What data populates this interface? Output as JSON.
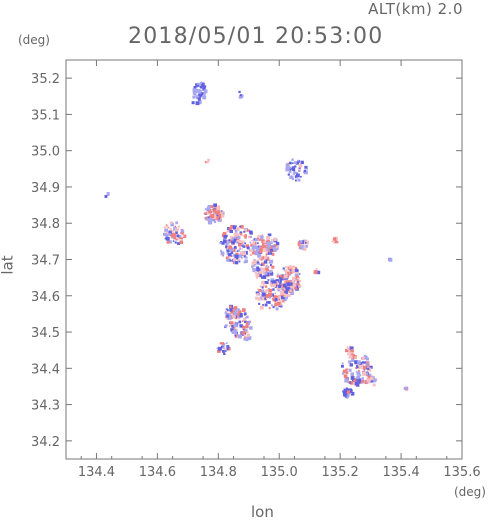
{
  "header": {
    "altitude_label": "ALT(km)  2.0",
    "datetime": "2018/05/01  20:53:00"
  },
  "axes": {
    "x_label": "lon",
    "y_label": "lat",
    "x_unit": "(deg)",
    "y_unit": "(deg)"
  },
  "chart_data": {
    "type": "scatter",
    "xlim": [
      134.3,
      135.6
    ],
    "ylim": [
      34.15,
      35.25
    ],
    "x_ticks": [
      "134.4",
      "134.6",
      "134.8",
      "135.0",
      "135.2",
      "135.4",
      "135.6"
    ],
    "y_ticks": [
      "34.2",
      "34.3",
      "34.4",
      "34.5",
      "34.6",
      "34.7",
      "34.8",
      "34.9",
      "35.0",
      "35.1",
      "35.2"
    ],
    "grid": false,
    "colors": {
      "positive": "#f08080",
      "negative": "#6060e0",
      "axis": "#777777"
    },
    "clusters": [
      {
        "lon": 134.74,
        "lat": 35.17,
        "r": 0.025,
        "n": 40,
        "mix": 0.95
      },
      {
        "lon": 134.72,
        "lat": 35.14,
        "r": 0.015,
        "n": 10,
        "mix": 0.9
      },
      {
        "lon": 134.87,
        "lat": 35.16,
        "r": 0.01,
        "n": 4,
        "mix": 0.9
      },
      {
        "lon": 134.76,
        "lat": 34.975,
        "r": 0.006,
        "n": 5,
        "mix": 0.1
      },
      {
        "lon": 135.05,
        "lat": 34.95,
        "r": 0.035,
        "n": 45,
        "mix": 0.95
      },
      {
        "lon": 134.43,
        "lat": 34.88,
        "r": 0.01,
        "n": 3,
        "mix": 0.9
      },
      {
        "lon": 134.78,
        "lat": 34.83,
        "r": 0.03,
        "n": 80,
        "mix": 0.4
      },
      {
        "lon": 134.65,
        "lat": 34.775,
        "r": 0.035,
        "n": 60,
        "mix": 0.5
      },
      {
        "lon": 134.86,
        "lat": 34.745,
        "r": 0.06,
        "n": 150,
        "mix": 0.55
      },
      {
        "lon": 134.95,
        "lat": 34.74,
        "r": 0.04,
        "n": 90,
        "mix": 0.55
      },
      {
        "lon": 135.075,
        "lat": 34.745,
        "r": 0.015,
        "n": 25,
        "mix": 0.4
      },
      {
        "lon": 135.18,
        "lat": 34.755,
        "r": 0.01,
        "n": 6,
        "mix": 0.3
      },
      {
        "lon": 134.94,
        "lat": 34.68,
        "r": 0.035,
        "n": 70,
        "mix": 0.55
      },
      {
        "lon": 135.03,
        "lat": 34.65,
        "r": 0.04,
        "n": 90,
        "mix": 0.4
      },
      {
        "lon": 134.97,
        "lat": 34.605,
        "r": 0.05,
        "n": 110,
        "mix": 0.45
      },
      {
        "lon": 135.02,
        "lat": 34.62,
        "r": 0.02,
        "n": 35,
        "mix": 0.3
      },
      {
        "lon": 135.12,
        "lat": 34.67,
        "r": 0.01,
        "n": 5,
        "mix": 0.7
      },
      {
        "lon": 134.86,
        "lat": 34.53,
        "r": 0.045,
        "n": 90,
        "mix": 0.55
      },
      {
        "lon": 134.84,
        "lat": 34.56,
        "r": 0.02,
        "n": 30,
        "mix": 0.5
      },
      {
        "lon": 134.81,
        "lat": 34.46,
        "r": 0.02,
        "n": 20,
        "mix": 0.6
      },
      {
        "lon": 134.89,
        "lat": 34.49,
        "r": 0.01,
        "n": 10,
        "mix": 0.6
      },
      {
        "lon": 135.25,
        "lat": 34.4,
        "r": 0.05,
        "n": 100,
        "mix": 0.55
      },
      {
        "lon": 135.23,
        "lat": 34.45,
        "r": 0.015,
        "n": 15,
        "mix": 0.2
      },
      {
        "lon": 135.22,
        "lat": 34.335,
        "r": 0.015,
        "n": 25,
        "mix": 0.85
      },
      {
        "lon": 135.3,
        "lat": 34.37,
        "r": 0.015,
        "n": 15,
        "mix": 0.4
      },
      {
        "lon": 135.41,
        "lat": 34.345,
        "r": 0.006,
        "n": 6,
        "mix": 0.4
      },
      {
        "lon": 135.36,
        "lat": 34.7,
        "r": 0.006,
        "n": 2,
        "mix": 0.5
      }
    ]
  }
}
